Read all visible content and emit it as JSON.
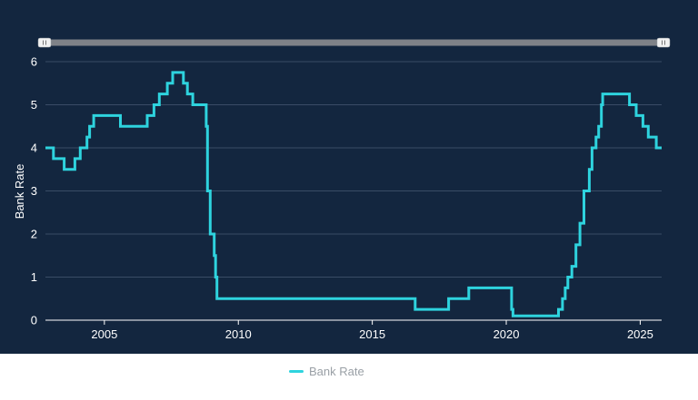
{
  "chart_data": {
    "type": "line",
    "line_shape": "step",
    "ylabel": "Bank Rate",
    "xlabel": "",
    "xlim": [
      2002.8,
      2025.8
    ],
    "ylim": [
      0,
      6
    ],
    "x_ticks": [
      2005,
      2010,
      2015,
      2020,
      2025
    ],
    "y_ticks": [
      0,
      1,
      2,
      3,
      4,
      5,
      6
    ],
    "grid": "horizontal",
    "legend_position": "bottom-center",
    "range_slider": true,
    "colors": {
      "background": "#13263f",
      "line": "#2ed3de",
      "grid": "#3a4c66"
    },
    "series": [
      {
        "name": "Bank Rate",
        "points": [
          [
            2002.8,
            4.0
          ],
          [
            2003.1,
            3.75
          ],
          [
            2003.5,
            3.5
          ],
          [
            2003.9,
            3.75
          ],
          [
            2004.1,
            4.0
          ],
          [
            2004.35,
            4.25
          ],
          [
            2004.45,
            4.5
          ],
          [
            2004.6,
            4.75
          ],
          [
            2005.6,
            4.5
          ],
          [
            2006.6,
            4.75
          ],
          [
            2006.85,
            5.0
          ],
          [
            2007.05,
            5.25
          ],
          [
            2007.35,
            5.5
          ],
          [
            2007.55,
            5.75
          ],
          [
            2007.95,
            5.5
          ],
          [
            2008.1,
            5.25
          ],
          [
            2008.3,
            5.0
          ],
          [
            2008.8,
            4.5
          ],
          [
            2008.85,
            3.0
          ],
          [
            2008.95,
            2.0
          ],
          [
            2009.1,
            1.5
          ],
          [
            2009.15,
            1.0
          ],
          [
            2009.2,
            0.5
          ],
          [
            2016.6,
            0.25
          ],
          [
            2017.85,
            0.5
          ],
          [
            2018.6,
            0.75
          ],
          [
            2020.2,
            0.25
          ],
          [
            2020.25,
            0.1
          ],
          [
            2021.95,
            0.25
          ],
          [
            2022.1,
            0.5
          ],
          [
            2022.2,
            0.75
          ],
          [
            2022.3,
            1.0
          ],
          [
            2022.45,
            1.25
          ],
          [
            2022.6,
            1.75
          ],
          [
            2022.75,
            2.25
          ],
          [
            2022.9,
            3.0
          ],
          [
            2023.1,
            3.5
          ],
          [
            2023.2,
            4.0
          ],
          [
            2023.35,
            4.25
          ],
          [
            2023.45,
            4.5
          ],
          [
            2023.55,
            5.0
          ],
          [
            2023.6,
            5.25
          ],
          [
            2024.6,
            5.0
          ],
          [
            2024.85,
            4.75
          ],
          [
            2025.1,
            4.5
          ],
          [
            2025.3,
            4.25
          ],
          [
            2025.6,
            4.0
          ],
          [
            2025.8,
            4.0
          ]
        ]
      }
    ]
  },
  "legend": {
    "label": "Bank Rate"
  }
}
